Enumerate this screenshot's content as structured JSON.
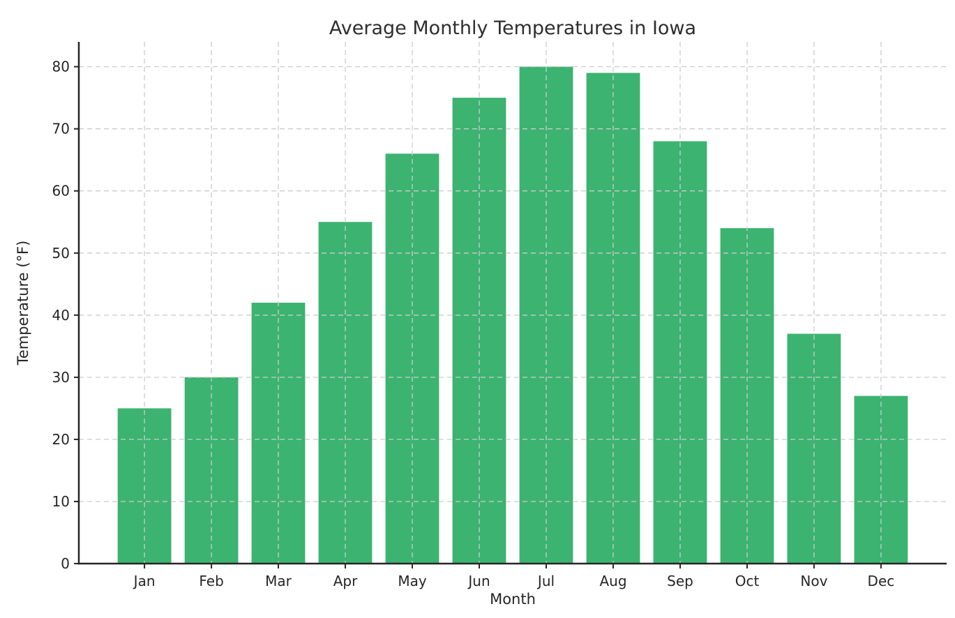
{
  "page": {
    "background_color": "#ffffff"
  },
  "chart_data": {
    "type": "bar",
    "title": "Average Monthly Temperatures in Iowa",
    "xlabel": "Month",
    "ylabel": "Temperature (°F)",
    "categories": [
      "Jan",
      "Feb",
      "Mar",
      "Apr",
      "May",
      "Jun",
      "Jul",
      "Aug",
      "Sep",
      "Oct",
      "Nov",
      "Dec"
    ],
    "values": [
      25,
      30,
      42,
      55,
      66,
      75,
      80,
      79,
      68,
      54,
      37,
      27
    ],
    "ylim": [
      0,
      84
    ],
    "yticks": [
      0,
      10,
      20,
      30,
      40,
      50,
      60,
      70,
      80
    ],
    "bar_color": "#3cb371",
    "grid": {
      "visible": true,
      "horizontal": true,
      "vertical": true,
      "style": "dashed",
      "color": "#cccccc",
      "above_bars": true
    },
    "axis_color": "#262626",
    "text_color": "#262626",
    "title_color": "#2e2e2e",
    "legend": "none"
  }
}
